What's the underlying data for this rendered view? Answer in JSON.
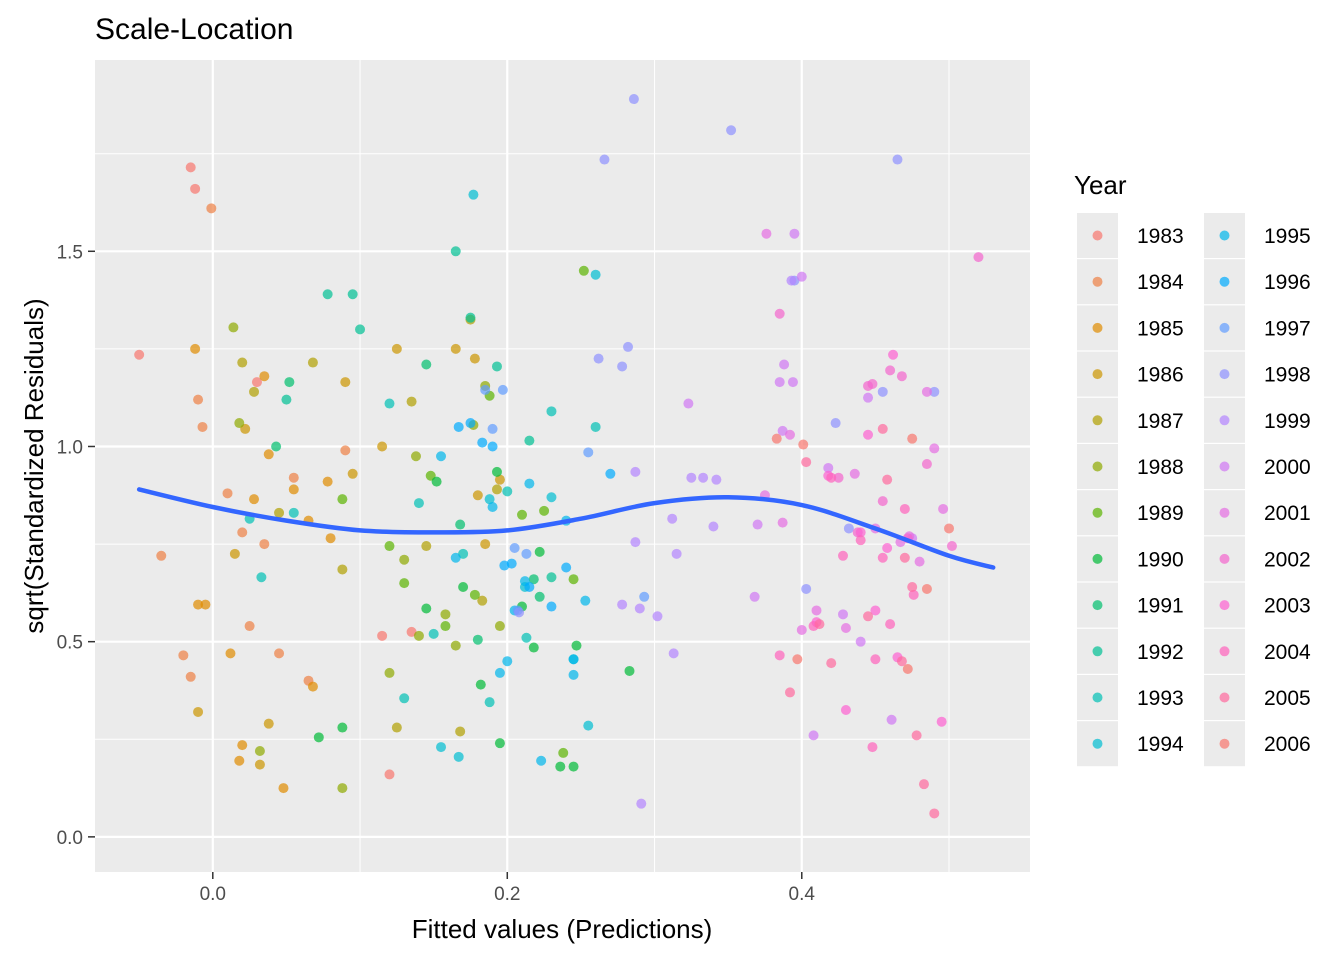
{
  "chart_data": {
    "type": "scatter",
    "title": "Scale-Location",
    "xlabel": "Fitted values (Predictions)",
    "ylabel": "sqrt(Standardized Residuals)",
    "xlim": [
      -0.08,
      0.555
    ],
    "ylim": [
      -0.09,
      1.99
    ],
    "x_ticks": [
      0.0,
      0.2,
      0.4
    ],
    "x_tick_labels": [
      "0.0",
      "0.2",
      "0.4"
    ],
    "y_ticks": [
      0.0,
      0.5,
      1.0,
      1.5
    ],
    "y_tick_labels": [
      "0.0",
      "0.5",
      "1.0",
      "1.5"
    ],
    "grid": true,
    "legend_position": "right",
    "legend_title": "Year",
    "panel_background": "#ebebeb",
    "point_opacity": 0.7,
    "categories": [
      "1983",
      "1984",
      "1985",
      "1986",
      "1987",
      "1988",
      "1989",
      "1990",
      "1991",
      "1992",
      "1993",
      "1994",
      "1995",
      "1996",
      "1997",
      "1998",
      "1999",
      "2000",
      "2001",
      "2002",
      "2003",
      "2004",
      "2005",
      "2006"
    ],
    "colors": [
      "#F8766D",
      "#EE8044",
      "#E08B00",
      "#CC9600",
      "#B19F00",
      "#8FAA00",
      "#5BB300",
      "#00BA38",
      "#00BF6D",
      "#00C094",
      "#00C0B5",
      "#00BDD1",
      "#00B6EB",
      "#00ABFD",
      "#619CFF",
      "#8F91FF",
      "#B385FF",
      "#D077F3",
      "#E56DE3",
      "#F365CD",
      "#FD61D1",
      "#FF62BC",
      "#FF6A9E",
      "#F8766D"
    ],
    "smooth_line": {
      "color": "#3366FF",
      "x": [
        -0.05,
        0.0,
        0.05,
        0.1,
        0.15,
        0.2,
        0.25,
        0.3,
        0.35,
        0.4,
        0.45,
        0.5,
        0.53
      ],
      "y": [
        0.89,
        0.845,
        0.81,
        0.785,
        0.78,
        0.785,
        0.815,
        0.855,
        0.87,
        0.85,
        0.79,
        0.72,
        0.69
      ]
    },
    "series": [
      {
        "name": "1983",
        "x": [
          -0.05,
          -0.015,
          -0.012,
          0.03,
          0.12,
          0.115,
          0.135
        ],
        "y": [
          1.235,
          1.715,
          1.66,
          1.165,
          0.16,
          0.515,
          0.525
        ]
      },
      {
        "name": "1984",
        "x": [
          -0.035,
          -0.01,
          -0.007,
          -0.001,
          0.01,
          0.02,
          0.025,
          0.035,
          0.045,
          0.055,
          0.065,
          0.09,
          -0.02,
          -0.015
        ],
        "y": [
          0.72,
          1.12,
          1.05,
          1.61,
          0.88,
          0.78,
          0.54,
          0.75,
          0.47,
          0.92,
          0.4,
          0.99,
          0.465,
          0.41
        ]
      },
      {
        "name": "1985",
        "x": [
          -0.012,
          0.012,
          0.018,
          0.02,
          0.028,
          0.035,
          0.038,
          0.048,
          0.055,
          0.065,
          0.068,
          0.078,
          0.08,
          -0.01,
          -0.005
        ],
        "y": [
          1.25,
          0.47,
          0.195,
          0.235,
          0.865,
          1.18,
          0.98,
          0.125,
          0.89,
          0.81,
          0.385,
          0.91,
          0.765,
          0.595,
          0.595
        ]
      },
      {
        "name": "1986",
        "x": [
          -0.01,
          0.015,
          0.022,
          0.032,
          0.038,
          0.09,
          0.095,
          0.115,
          0.125,
          0.165,
          0.178,
          0.18,
          0.185,
          0.195
        ],
        "y": [
          0.32,
          0.725,
          1.045,
          0.185,
          0.29,
          1.165,
          0.93,
          1.0,
          1.25,
          1.25,
          1.225,
          0.875,
          0.75,
          0.915
        ]
      },
      {
        "name": "1987",
        "x": [
          0.02,
          0.028,
          0.045,
          0.068,
          0.088,
          0.125,
          0.135,
          0.145,
          0.168,
          0.175,
          0.183,
          0.193
        ],
        "y": [
          1.215,
          1.14,
          0.83,
          1.215,
          0.685,
          0.28,
          1.115,
          0.745,
          0.27,
          1.325,
          0.605,
          0.89
        ]
      },
      {
        "name": "1988",
        "x": [
          0.014,
          0.018,
          0.032,
          0.088,
          0.12,
          0.13,
          0.138,
          0.14,
          0.158,
          0.165,
          0.177,
          0.185,
          0.195
        ],
        "y": [
          1.305,
          1.06,
          0.22,
          0.125,
          0.42,
          0.71,
          0.975,
          0.515,
          0.57,
          0.49,
          1.055,
          1.155,
          0.54
        ]
      },
      {
        "name": "1989",
        "x": [
          0.088,
          0.12,
          0.13,
          0.148,
          0.158,
          0.178,
          0.188,
          0.21,
          0.225,
          0.238,
          0.245,
          0.252
        ],
        "y": [
          0.865,
          0.745,
          0.65,
          0.925,
          0.54,
          0.62,
          1.13,
          0.825,
          0.835,
          0.215,
          0.66,
          1.45
        ]
      },
      {
        "name": "1990",
        "x": [
          0.072,
          0.088,
          0.145,
          0.152,
          0.17,
          0.182,
          0.193,
          0.195,
          0.21,
          0.218,
          0.222,
          0.236,
          0.245,
          0.247,
          0.283
        ],
        "y": [
          0.255,
          0.28,
          0.585,
          0.91,
          0.64,
          0.39,
          0.935,
          0.24,
          0.59,
          0.485,
          0.73,
          0.18,
          0.18,
          0.49,
          0.425
        ]
      },
      {
        "name": "1991",
        "x": [
          0.043,
          0.052,
          0.145,
          0.168,
          0.18,
          0.218,
          0.222
        ],
        "y": [
          1.0,
          1.165,
          1.21,
          0.8,
          0.505,
          0.66,
          0.615
        ]
      },
      {
        "name": "1992",
        "x": [
          0.05,
          0.078,
          0.095,
          0.1,
          0.165,
          0.175,
          0.193,
          0.215,
          0.23
        ],
        "y": [
          1.12,
          1.39,
          1.39,
          1.3,
          1.5,
          1.33,
          1.205,
          1.015,
          0.665
        ]
      },
      {
        "name": "1993",
        "x": [
          0.025,
          0.033,
          0.055,
          0.12,
          0.13,
          0.14,
          0.15,
          0.17,
          0.188,
          0.2,
          0.213,
          0.23,
          0.26
        ],
        "y": [
          0.815,
          0.665,
          0.83,
          1.11,
          0.355,
          0.855,
          0.52,
          0.725,
          0.345,
          0.885,
          0.51,
          1.09,
          1.05
        ]
      },
      {
        "name": "1994",
        "x": [
          0.155,
          0.167,
          0.177,
          0.188,
          0.212,
          0.23,
          0.245,
          0.255,
          0.26
        ],
        "y": [
          0.23,
          0.205,
          1.645,
          0.865,
          0.64,
          0.87,
          0.455,
          0.285,
          1.44
        ]
      },
      {
        "name": "1995",
        "x": [
          0.155,
          0.165,
          0.19,
          0.195,
          0.2,
          0.205,
          0.212,
          0.215,
          0.223,
          0.24,
          0.245,
          0.245,
          0.253
        ],
        "y": [
          0.975,
          0.715,
          0.845,
          0.42,
          0.45,
          0.58,
          0.655,
          0.905,
          0.195,
          0.81,
          0.415,
          0.455,
          0.605
        ]
      },
      {
        "name": "1996",
        "x": [
          0.167,
          0.175,
          0.183,
          0.19,
          0.198,
          0.203,
          0.215,
          0.23,
          0.24,
          0.27
        ],
        "y": [
          1.05,
          1.06,
          1.01,
          1.0,
          0.695,
          0.7,
          0.64,
          0.59,
          0.69,
          0.93
        ]
      },
      {
        "name": "1997",
        "x": [
          0.185,
          0.19,
          0.197,
          0.205,
          0.207,
          0.213,
          0.255,
          0.293
        ],
        "y": [
          1.145,
          1.045,
          1.145,
          0.74,
          0.58,
          0.725,
          0.985,
          0.615
        ]
      },
      {
        "name": "1998",
        "x": [
          0.208,
          0.262,
          0.266,
          0.278,
          0.282,
          0.286,
          0.352,
          0.395,
          0.403,
          0.423,
          0.432,
          0.455,
          0.465,
          0.49
        ],
        "y": [
          0.575,
          1.225,
          1.735,
          1.205,
          1.255,
          1.89,
          1.81,
          1.425,
          0.635,
          1.06,
          0.79,
          1.14,
          1.735,
          1.14
        ]
      },
      {
        "name": "1999",
        "x": [
          0.278,
          0.287,
          0.287,
          0.291,
          0.29,
          0.302,
          0.312,
          0.313,
          0.315,
          0.325,
          0.333,
          0.34,
          0.342,
          0.393
        ],
        "y": [
          0.595,
          0.755,
          0.935,
          0.085,
          0.585,
          0.565,
          0.815,
          0.47,
          0.725,
          0.92,
          0.92,
          0.795,
          0.915,
          1.425
        ]
      },
      {
        "name": "2000",
        "x": [
          0.323,
          0.368,
          0.37,
          0.385,
          0.388,
          0.387,
          0.394,
          0.395,
          0.4,
          0.408,
          0.418,
          0.428,
          0.44,
          0.445,
          0.461,
          0.475
        ],
        "y": [
          1.11,
          0.615,
          0.8,
          1.165,
          1.21,
          1.04,
          1.165,
          1.545,
          1.435,
          0.26,
          0.945,
          0.57,
          0.5,
          1.125,
          0.3,
          0.765
        ]
      },
      {
        "name": "2001",
        "x": [
          0.375,
          0.376,
          0.392,
          0.387,
          0.4,
          0.41,
          0.43,
          0.436,
          0.45,
          0.467,
          0.473,
          0.48,
          0.485,
          0.49,
          0.496
        ],
        "y": [
          0.875,
          1.545,
          1.03,
          0.805,
          0.53,
          0.58,
          0.535,
          0.93,
          0.79,
          0.755,
          0.77,
          0.705,
          1.14,
          0.995,
          0.84
        ]
      },
      {
        "name": "2002",
        "x": [
          0.385,
          0.425,
          0.438,
          0.445,
          0.448,
          0.455,
          0.46,
          0.468,
          0.472,
          0.485,
          0.502,
          0.52
        ],
        "y": [
          1.34,
          0.92,
          0.78,
          1.155,
          1.16,
          0.86,
          1.195,
          1.18,
          0.765,
          0.955,
          0.745,
          1.485
        ]
      },
      {
        "name": "2003",
        "x": [
          0.41,
          0.418,
          0.43,
          0.44,
          0.445,
          0.45,
          0.458,
          0.462,
          0.465,
          0.495
        ],
        "y": [
          0.55,
          0.925,
          0.325,
          0.78,
          1.03,
          0.58,
          0.74,
          1.235,
          0.46,
          0.295
        ]
      },
      {
        "name": "2004",
        "x": [
          0.385,
          0.408,
          0.42,
          0.428,
          0.44,
          0.448,
          0.45,
          0.455,
          0.46,
          0.47,
          0.476
        ],
        "y": [
          0.465,
          0.54,
          0.92,
          0.72,
          0.76,
          0.23,
          0.455,
          0.715,
          0.545,
          0.84,
          0.62
        ]
      },
      {
        "name": "2005",
        "x": [
          0.392,
          0.403,
          0.412,
          0.42,
          0.445,
          0.455,
          0.458,
          0.468,
          0.47,
          0.475,
          0.478,
          0.483,
          0.49
        ],
        "y": [
          0.37,
          0.96,
          0.545,
          0.445,
          0.565,
          1.045,
          0.915,
          0.45,
          0.715,
          0.64,
          0.26,
          0.135,
          0.06
        ]
      },
      {
        "name": "2006",
        "x": [
          0.383,
          0.397,
          0.401,
          0.472,
          0.475,
          0.485,
          0.5
        ],
        "y": [
          1.02,
          0.455,
          1.005,
          0.43,
          1.02,
          0.635,
          0.79
        ]
      }
    ]
  }
}
